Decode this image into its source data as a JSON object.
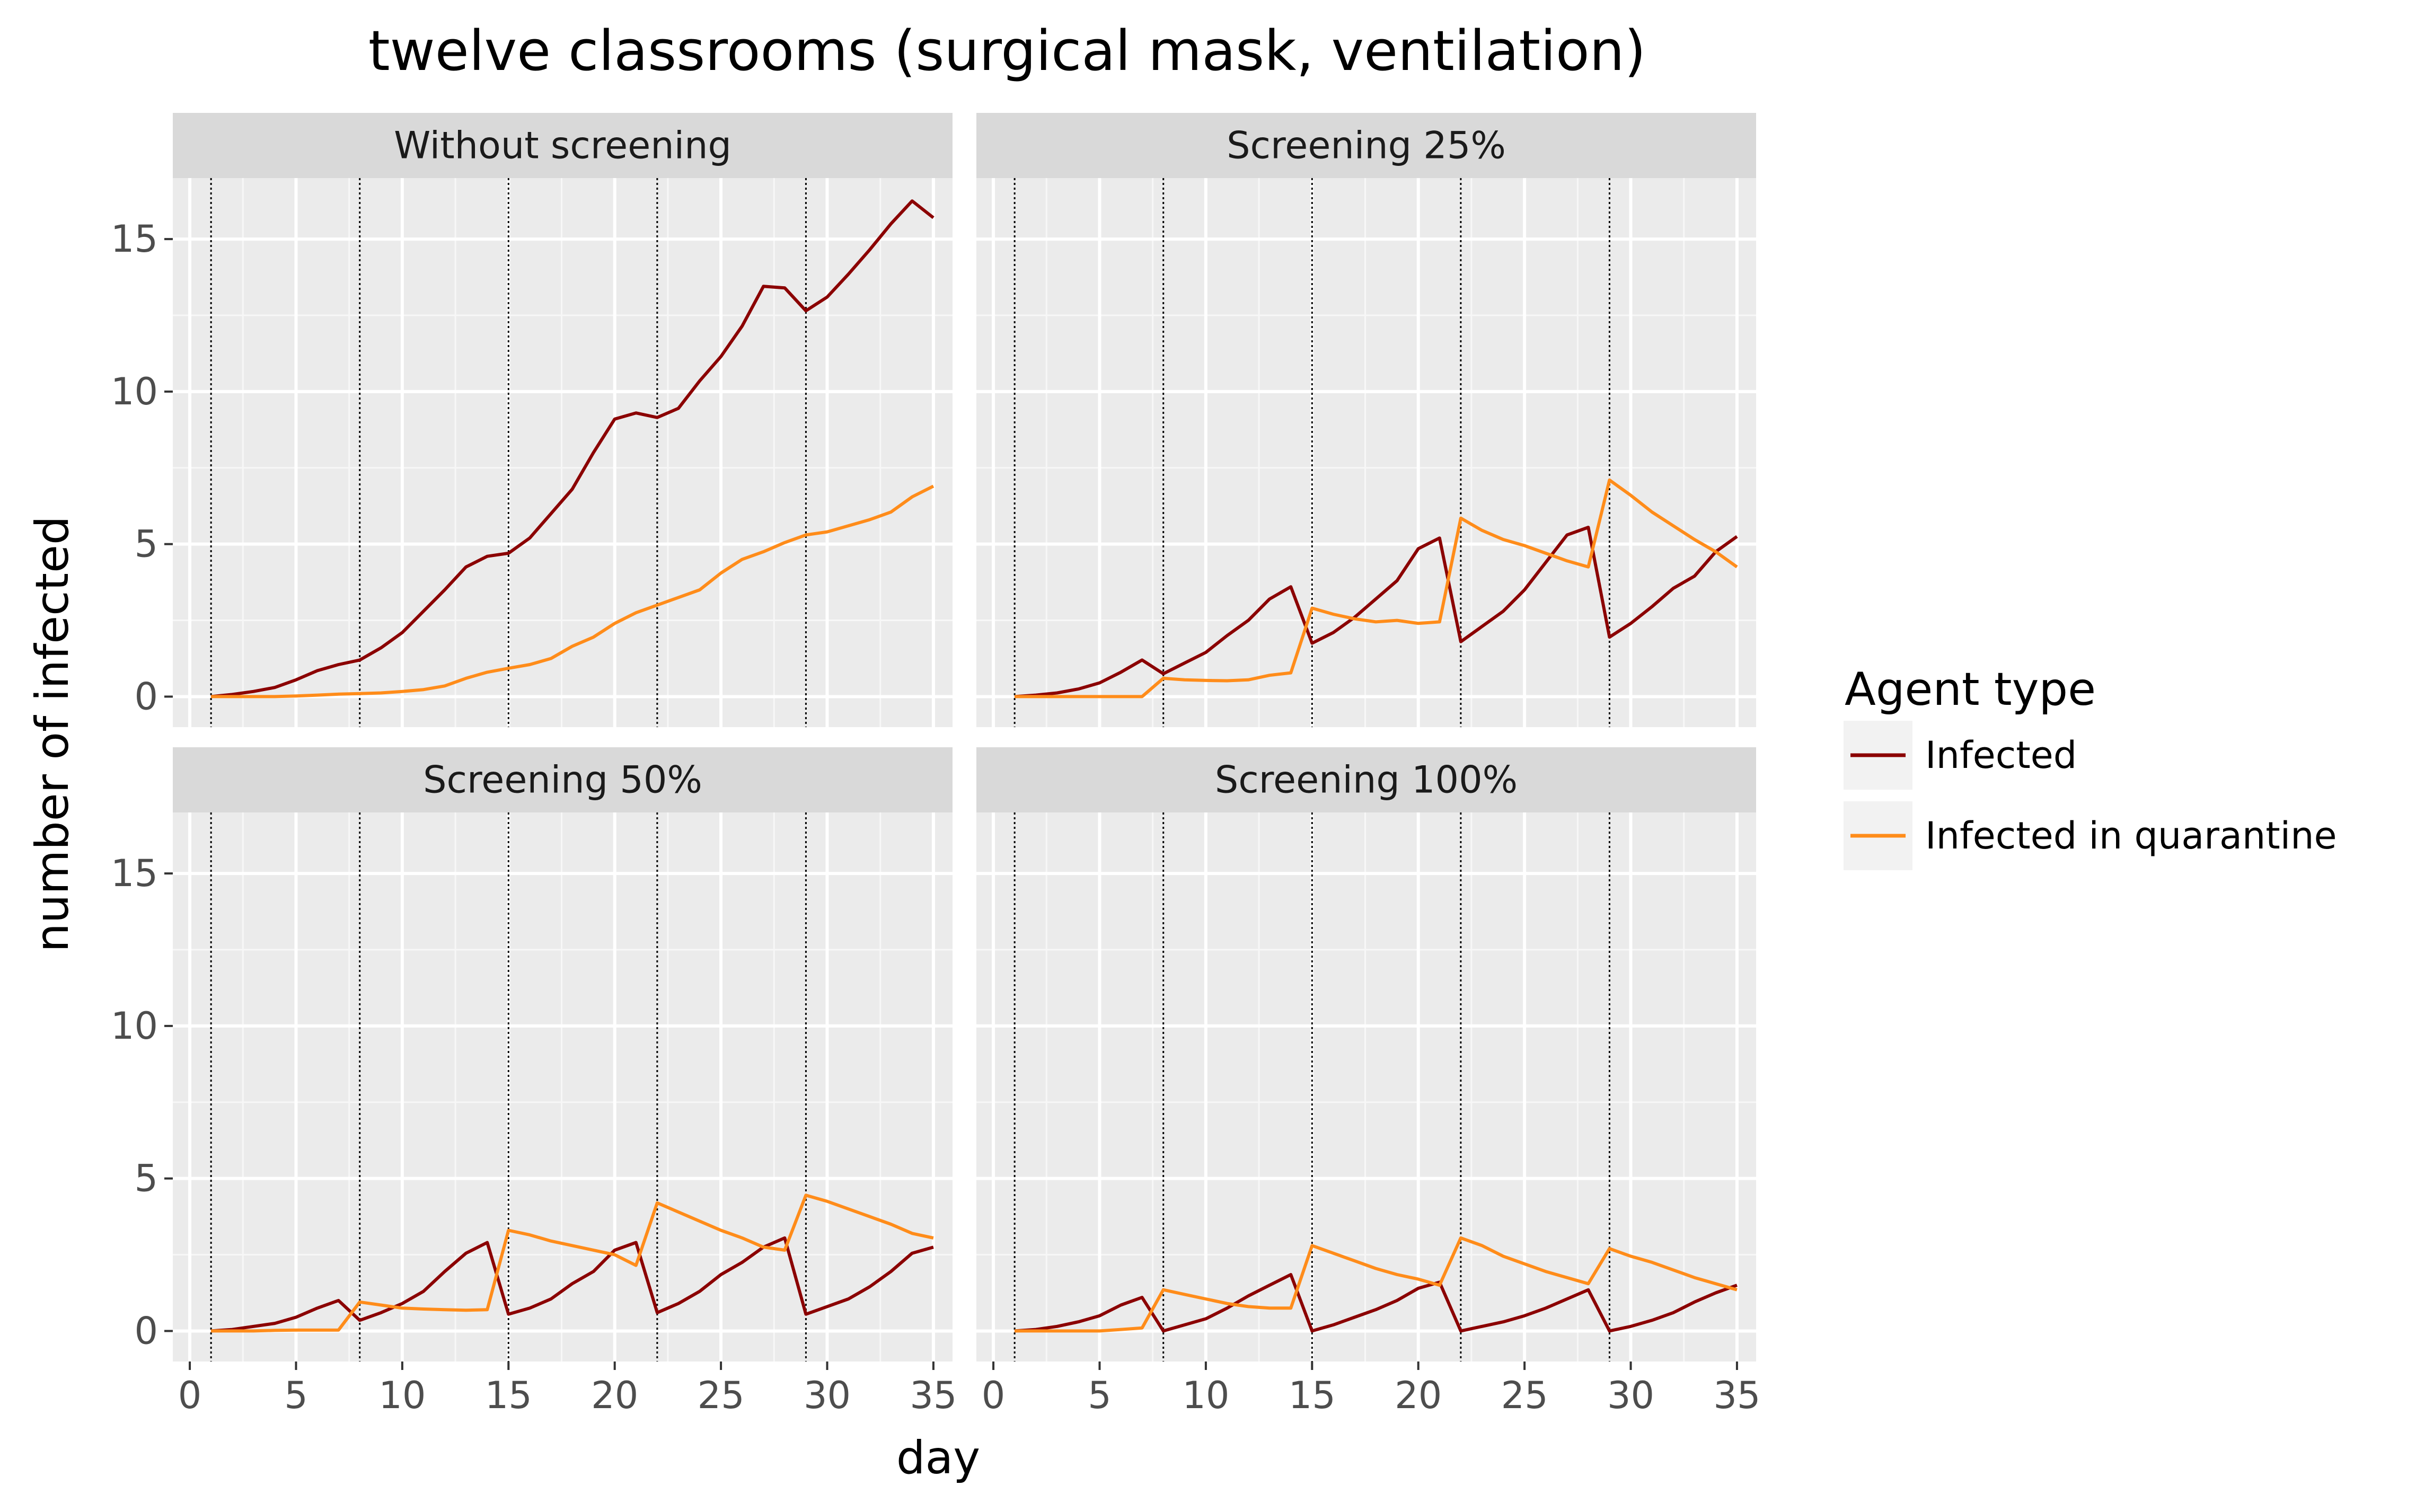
{
  "chart_data": {
    "type": "line",
    "title": "twelve classrooms (surgical mask, ventilation)",
    "xlabel": "day",
    "ylabel": "number of infected",
    "xlim": [
      -0.8,
      35.9
    ],
    "ylim": [
      -1.0,
      17.0
    ],
    "xticks": [
      0,
      5,
      10,
      15,
      20,
      25,
      30,
      35
    ],
    "yticks": [
      0,
      5,
      10,
      15
    ],
    "grid": true,
    "vlines": [
      1,
      8,
      15,
      22,
      29
    ],
    "legend": {
      "title": "Agent type",
      "position": "right",
      "entries": [
        {
          "label": "Infected",
          "color": "#8B0000"
        },
        {
          "label": "Infected in quarantine",
          "color": "#FF8C1A"
        }
      ]
    },
    "x": [
      1,
      2,
      3,
      4,
      5,
      6,
      7,
      8,
      9,
      10,
      11,
      12,
      13,
      14,
      15,
      16,
      17,
      18,
      19,
      20,
      21,
      22,
      23,
      24,
      25,
      26,
      27,
      28,
      29,
      30,
      31,
      32,
      33,
      34,
      35
    ],
    "panels": [
      {
        "title": "Without screening",
        "series": [
          {
            "name": "Infected",
            "color": "#8B0000",
            "values": [
              0,
              0.07,
              0.17,
              0.3,
              0.55,
              0.85,
              1.05,
              1.2,
              1.6,
              2.1,
              2.8,
              3.5,
              4.25,
              4.6,
              4.7,
              5.2,
              6.0,
              6.8,
              8.0,
              9.1,
              9.3,
              9.15,
              9.45,
              10.35,
              11.15,
              12.15,
              13.45,
              13.4,
              12.65,
              13.1,
              13.85,
              14.65,
              15.5,
              16.25,
              15.7
            ]
          },
          {
            "name": "Infected in quarantine",
            "color": "#FF8C1A",
            "values": [
              0,
              0,
              0,
              0,
              0.02,
              0.05,
              0.08,
              0.1,
              0.12,
              0.17,
              0.23,
              0.35,
              0.6,
              0.8,
              0.93,
              1.05,
              1.25,
              1.65,
              1.95,
              2.4,
              2.75,
              3.0,
              3.25,
              3.5,
              4.05,
              4.5,
              4.75,
              5.05,
              5.3,
              5.4,
              5.6,
              5.8,
              6.05,
              6.55,
              6.9
            ]
          }
        ]
      },
      {
        "title": "Screening 25%",
        "series": [
          {
            "name": "Infected",
            "color": "#8B0000",
            "values": [
              0,
              0.05,
              0.12,
              0.25,
              0.45,
              0.8,
              1.2,
              0.75,
              1.1,
              1.45,
              2.0,
              2.5,
              3.2,
              3.6,
              1.75,
              2.1,
              2.6,
              3.2,
              3.8,
              4.85,
              5.2,
              1.8,
              2.3,
              2.8,
              3.5,
              4.4,
              5.3,
              5.55,
              1.95,
              2.4,
              2.95,
              3.55,
              3.95,
              4.75,
              5.25
            ]
          },
          {
            "name": "Infected in quarantine",
            "color": "#FF8C1A",
            "values": [
              0,
              0,
              0,
              0,
              0,
              0,
              0,
              0.6,
              0.55,
              0.53,
              0.52,
              0.55,
              0.7,
              0.78,
              2.9,
              2.7,
              2.55,
              2.45,
              2.5,
              2.4,
              2.45,
              5.85,
              5.45,
              5.15,
              4.95,
              4.7,
              4.45,
              4.25,
              7.1,
              6.6,
              6.05,
              5.6,
              5.15,
              4.75,
              4.25
            ]
          }
        ]
      },
      {
        "title": "Screening 50%",
        "series": [
          {
            "name": "Infected",
            "color": "#8B0000",
            "values": [
              0,
              0.05,
              0.15,
              0.25,
              0.45,
              0.75,
              1.0,
              0.35,
              0.6,
              0.9,
              1.3,
              1.95,
              2.55,
              2.9,
              0.55,
              0.75,
              1.05,
              1.55,
              1.95,
              2.65,
              2.9,
              0.6,
              0.9,
              1.3,
              1.85,
              2.25,
              2.75,
              3.05,
              0.55,
              0.8,
              1.05,
              1.45,
              1.95,
              2.55,
              2.75
            ]
          },
          {
            "name": "Infected in quarantine",
            "color": "#FF8C1A",
            "values": [
              0,
              0,
              0,
              0.02,
              0.03,
              0.03,
              0.03,
              0.95,
              0.85,
              0.75,
              0.72,
              0.7,
              0.68,
              0.7,
              3.3,
              3.15,
              2.95,
              2.8,
              2.65,
              2.5,
              2.15,
              4.2,
              3.9,
              3.6,
              3.3,
              3.05,
              2.75,
              2.65,
              4.45,
              4.25,
              4.0,
              3.75,
              3.5,
              3.2,
              3.05
            ]
          }
        ]
      },
      {
        "title": "Screening 100%",
        "series": [
          {
            "name": "Infected",
            "color": "#8B0000",
            "values": [
              0,
              0.05,
              0.15,
              0.3,
              0.5,
              0.85,
              1.1,
              0,
              0.2,
              0.4,
              0.75,
              1.15,
              1.5,
              1.85,
              0,
              0.2,
              0.45,
              0.7,
              1.0,
              1.4,
              1.6,
              0,
              0.15,
              0.3,
              0.5,
              0.75,
              1.05,
              1.35,
              0,
              0.15,
              0.35,
              0.6,
              0.95,
              1.25,
              1.5
            ]
          },
          {
            "name": "Infected in quarantine",
            "color": "#FF8C1A",
            "values": [
              0,
              0,
              0,
              0,
              0,
              0.05,
              0.1,
              1.35,
              1.2,
              1.05,
              0.9,
              0.8,
              0.75,
              0.75,
              2.8,
              2.55,
              2.3,
              2.05,
              1.85,
              1.7,
              1.5,
              3.05,
              2.8,
              2.45,
              2.2,
              1.95,
              1.75,
              1.55,
              2.7,
              2.45,
              2.25,
              2.0,
              1.75,
              1.55,
              1.35
            ]
          }
        ]
      }
    ]
  }
}
